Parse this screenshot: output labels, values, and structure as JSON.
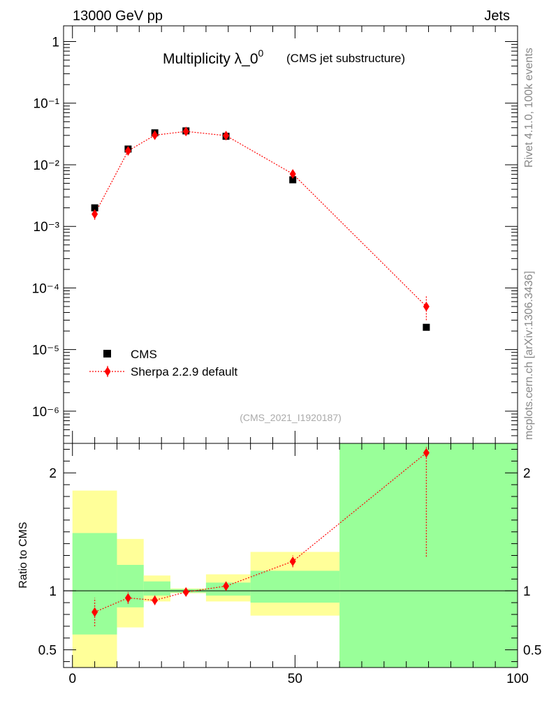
{
  "header": {
    "left": "13000 GeV pp",
    "right": "Jets"
  },
  "side_labels": {
    "rivet": "Rivet 4.1.0,  100k events",
    "mcplots": "mcplots.cern.ch [arXiv:1306.3436]"
  },
  "chart_data": [
    {
      "type": "scatter",
      "title": "Multiplicity λ_0",
      "title_sup": "0",
      "subtitle": "(CMS jet substructure)",
      "watermark": "(CMS_2021_I1920187)",
      "yscale": "log",
      "xlim": [
        -2,
        100
      ],
      "ylim": [
        3e-07,
        1.8
      ],
      "ytick_labels": [
        "10⁻⁶",
        "10⁻⁵",
        "10⁻⁴",
        "10⁻³",
        "10⁻²",
        "10⁻¹",
        "1"
      ],
      "legend_position": "bottom-left",
      "series": [
        {
          "name": "CMS",
          "color": "#000000",
          "marker": "square",
          "x": [
            5,
            12.5,
            18.5,
            25.5,
            34.5,
            49.5,
            79.5
          ],
          "y": [
            0.002,
            0.018,
            0.033,
            0.0355,
            0.029,
            0.0057,
            2.3e-05
          ]
        },
        {
          "name": "Sherpa 2.2.9 default",
          "color": "#ff0000",
          "marker": "diamond",
          "line": "dotted",
          "x": [
            5,
            12.5,
            18.5,
            25.5,
            34.5,
            49.5,
            79.5
          ],
          "y": [
            0.00158,
            0.0168,
            0.0302,
            0.0348,
            0.0297,
            0.0071,
            5e-05
          ],
          "yerr_low": [
            0.0003,
            0.0015,
            0.0018,
            0.0017,
            0.0018,
            0.0005,
            2e-05
          ],
          "yerr_high": [
            0.0003,
            0.0015,
            0.0018,
            0.0017,
            0.0018,
            0.0005,
            2.5e-05
          ]
        }
      ]
    },
    {
      "type": "scatter",
      "ylabel": "Ratio to CMS",
      "xlim": [
        -2,
        100
      ],
      "ylim": [
        0.35,
        2.25
      ],
      "yticks": [
        0.5,
        1,
        2
      ],
      "ytick_labels": [
        "0.5",
        "1",
        "2"
      ],
      "xticks": [
        0,
        50,
        100
      ],
      "xtick_labels": [
        "0",
        "50",
        "100"
      ],
      "reference_line": 1,
      "bands": [
        {
          "x0": 0,
          "x1": 10,
          "yellow": [
            0.35,
            1.85
          ],
          "green": [
            0.63,
            1.49
          ]
        },
        {
          "x0": 10,
          "x1": 16,
          "yellow": [
            0.69,
            1.44
          ],
          "green": [
            0.86,
            1.22
          ]
        },
        {
          "x0": 16,
          "x1": 22,
          "yellow": [
            0.91,
            1.13
          ],
          "green": [
            0.96,
            1.08
          ]
        },
        {
          "x0": 22,
          "x1": 30,
          "yellow": [
            0.98,
            1.02
          ],
          "green": [
            0.985,
            1.015
          ]
        },
        {
          "x0": 30,
          "x1": 40,
          "yellow": [
            0.91,
            1.14
          ],
          "green": [
            0.96,
            1.07
          ]
        },
        {
          "x0": 40,
          "x1": 60,
          "yellow": [
            0.79,
            1.33
          ],
          "green": [
            0.9,
            1.17
          ]
        },
        {
          "x0": 60,
          "x1": 100,
          "yellow": [
            0.35,
            2.25
          ],
          "green": [
            0.35,
            2.25
          ]
        }
      ],
      "series": [
        {
          "name": "Sherpa 2.2.9 default",
          "color": "#ff0000",
          "marker": "diamond",
          "line": "dotted",
          "x": [
            5,
            12.5,
            18.5,
            25.5,
            34.5,
            49.5,
            79.5
          ],
          "y": [
            0.82,
            0.94,
            0.92,
            0.99,
            1.04,
            1.25,
            2.17
          ],
          "yerr_low": [
            0.12,
            0.05,
            0.04,
            0.03,
            0.03,
            0.05,
            0.88
          ],
          "yerr_high": [
            0.12,
            0.05,
            0.04,
            0.03,
            0.03,
            0.05,
            0.05
          ]
        }
      ]
    }
  ]
}
